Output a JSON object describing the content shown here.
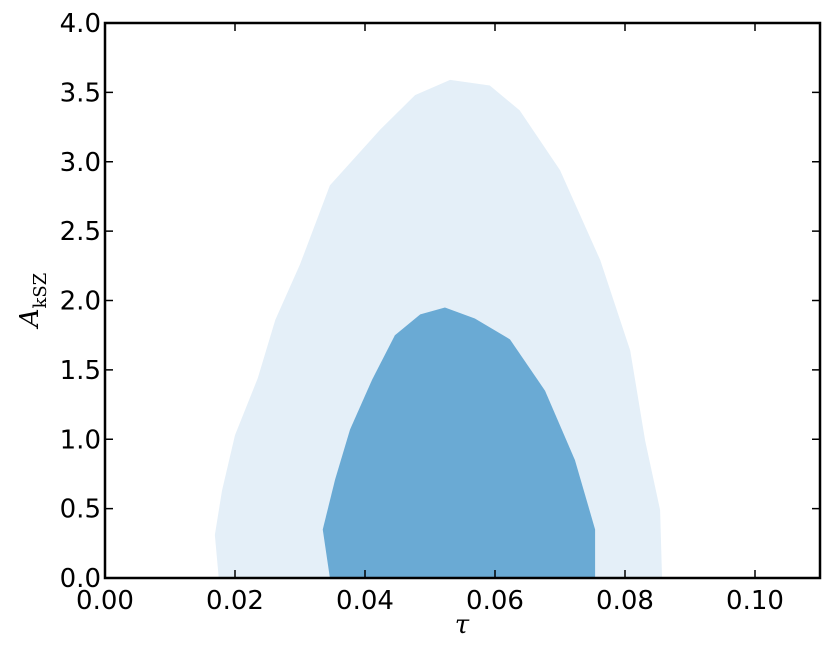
{
  "chart_data": {
    "type": "contour",
    "xlabel": "τ",
    "ylabel": {
      "main": "A",
      "sub": "kSZ"
    },
    "xlim": [
      0,
      0.11
    ],
    "ylim": [
      0,
      4
    ],
    "xticks": [
      {
        "value": 0,
        "label": "0.00"
      },
      {
        "value": 0.02,
        "label": "0.02"
      },
      {
        "value": 0.04,
        "label": "0.04"
      },
      {
        "value": 0.06,
        "label": "0.06"
      },
      {
        "value": 0.08,
        "label": "0.08"
      },
      {
        "value": 0.1,
        "label": "0.10"
      }
    ],
    "yticks": [
      {
        "value": 0,
        "label": "0.0"
      },
      {
        "value": 0.5,
        "label": "0.5"
      },
      {
        "value": 1,
        "label": "1.0"
      },
      {
        "value": 1.5,
        "label": "1.5"
      },
      {
        "value": 2,
        "label": "2.0"
      },
      {
        "value": 2.5,
        "label": "2.5"
      },
      {
        "value": 3,
        "label": "3.0"
      },
      {
        "value": 3.5,
        "label": "3.5"
      },
      {
        "value": 4,
        "label": "4.0"
      }
    ],
    "contours": [
      {
        "color": "#e4eff8",
        "x": [
          0.0175,
          0.0169,
          0.018,
          0.02,
          0.0235,
          0.0262,
          0.03,
          0.0346,
          0.0423,
          0.0477,
          0.0531,
          0.0592,
          0.0638,
          0.07,
          0.0762,
          0.0808,
          0.0831,
          0.0854,
          0.0857
        ],
        "y": [
          0,
          0.31,
          0.63,
          1.03,
          1.44,
          1.86,
          2.26,
          2.83,
          3.23,
          3.48,
          3.59,
          3.55,
          3.37,
          2.94,
          2.29,
          1.64,
          0.99,
          0.49,
          0
        ]
      },
      {
        "color": "#6aaad4",
        "x": [
          0.0346,
          0.0335,
          0.0354,
          0.0377,
          0.0411,
          0.0446,
          0.0485,
          0.0523,
          0.0569,
          0.0623,
          0.0677,
          0.0723,
          0.0754,
          0.0754
        ],
        "y": [
          0,
          0.35,
          0.71,
          1.07,
          1.43,
          1.75,
          1.9,
          1.95,
          1.87,
          1.72,
          1.35,
          0.85,
          0.35,
          0
        ]
      }
    ]
  }
}
